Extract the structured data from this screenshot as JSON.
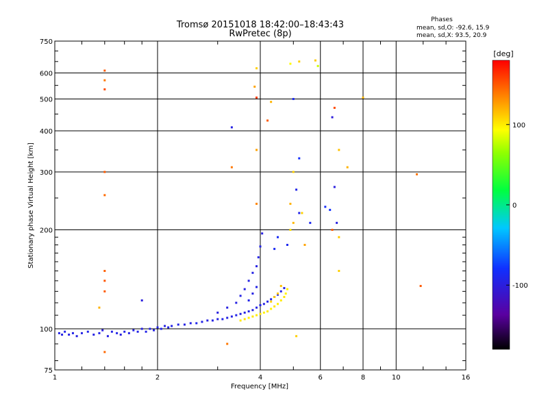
{
  "header": {
    "title_line1": "Tromsø 20151018 18:42:00–18:43:43",
    "title_line2": "RwPretec (8p)",
    "stats_title": "Phases",
    "stats_o": "mean, sd,O: -92.6, 15.9",
    "stats_x": "mean, sd,X:  93.5, 20.9"
  },
  "colorbar": {
    "unit": "[deg]",
    "ticks": [
      "100",
      "0",
      "-100"
    ],
    "tick_values": [
      100,
      0,
      -100
    ],
    "range": [
      -180,
      180
    ],
    "colormap": "rainbow-black-to-red"
  },
  "chart_data": {
    "type": "scatter",
    "xlabel": "Frequency [MHz]",
    "ylabel": "Stationary phase Virtual Height [km]",
    "x_scale": "log2",
    "y_scale": "log",
    "xlim": [
      1,
      16
    ],
    "ylim": [
      75,
      750
    ],
    "x_ticks": [
      {
        "v": 1,
        "label": "1"
      },
      {
        "v": 2,
        "label": "2"
      },
      {
        "v": 4,
        "label": "4"
      },
      {
        "v": 6,
        "label": "6"
      },
      {
        "v": 8,
        "label": "8"
      },
      {
        "v": 10,
        "label": "10"
      },
      {
        "v": 16,
        "label": "16"
      }
    ],
    "y_ticks": [
      {
        "v": 75,
        "label": "75"
      },
      {
        "v": 100,
        "label": "100"
      },
      {
        "v": 200,
        "label": "200"
      },
      {
        "v": 300,
        "label": "300"
      },
      {
        "v": 400,
        "label": "400"
      },
      {
        "v": 500,
        "label": "500"
      },
      {
        "v": 600,
        "label": "600"
      },
      {
        "v": 750,
        "label": "750"
      }
    ],
    "x_grid": [
      2,
      4,
      6,
      8,
      10
    ],
    "y_grid": [
      100,
      200,
      300,
      400,
      500,
      600
    ],
    "grid": true,
    "series": [
      {
        "values": [
          [
            1.03,
            97,
            -95
          ],
          [
            1.05,
            96,
            -97
          ],
          [
            1.07,
            98,
            -94
          ],
          [
            1.1,
            96,
            -96
          ],
          [
            1.13,
            97,
            -95
          ],
          [
            1.16,
            95,
            -98
          ],
          [
            1.2,
            97,
            -96
          ],
          [
            1.25,
            98,
            -93
          ],
          [
            1.3,
            96,
            -97
          ],
          [
            1.35,
            97,
            -95
          ],
          [
            1.38,
            99,
            -100
          ],
          [
            1.43,
            95,
            -98
          ],
          [
            1.47,
            98,
            -96
          ],
          [
            1.52,
            97,
            -94
          ],
          [
            1.56,
            96,
            -99
          ],
          [
            1.6,
            98,
            -95
          ],
          [
            1.65,
            97,
            -97
          ],
          [
            1.7,
            99,
            -96
          ],
          [
            1.75,
            98,
            -95
          ],
          [
            1.8,
            100,
            -98
          ],
          [
            1.85,
            98,
            -94
          ],
          [
            1.9,
            100,
            -97
          ],
          [
            1.95,
            99,
            -96
          ],
          [
            2.0,
            101,
            -95
          ],
          [
            2.05,
            100,
            -92
          ],
          [
            2.1,
            102,
            -98
          ],
          [
            2.15,
            101,
            -96
          ],
          [
            2.2,
            102,
            -95
          ],
          [
            2.3,
            103,
            -94
          ],
          [
            2.4,
            103,
            -97
          ],
          [
            2.5,
            104,
            -96
          ],
          [
            2.6,
            104,
            -92
          ],
          [
            2.7,
            105,
            -95
          ],
          [
            2.8,
            106,
            -98
          ],
          [
            2.9,
            106,
            -96
          ],
          [
            3.0,
            107,
            -97
          ],
          [
            3.1,
            107,
            -95
          ],
          [
            3.2,
            108,
            -96
          ],
          [
            3.3,
            109,
            -97
          ],
          [
            3.4,
            110,
            -94
          ],
          [
            3.5,
            111,
            -98
          ],
          [
            3.6,
            112,
            -96
          ],
          [
            3.7,
            113,
            -95
          ],
          [
            3.8,
            114,
            -97
          ],
          [
            3.9,
            116,
            -96
          ],
          [
            4.0,
            118,
            -95
          ],
          [
            4.1,
            119,
            -97
          ],
          [
            4.2,
            121,
            -96
          ],
          [
            4.3,
            123,
            -95
          ],
          [
            4.4,
            125,
            -98
          ],
          [
            4.5,
            127,
            -96
          ],
          [
            4.6,
            130,
            -95
          ],
          [
            4.7,
            133,
            -97
          ],
          [
            3.0,
            112,
            -99
          ],
          [
            3.2,
            116,
            -98
          ],
          [
            3.4,
            120,
            -97
          ],
          [
            3.5,
            126,
            -96
          ],
          [
            3.6,
            132,
            -98
          ],
          [
            3.7,
            140,
            -97
          ],
          [
            3.8,
            148,
            -96
          ],
          [
            3.9,
            155,
            -97
          ],
          [
            3.95,
            165,
            -96
          ],
          [
            4.0,
            178,
            -95
          ],
          [
            4.05,
            195,
            -98
          ],
          [
            3.9,
            134,
            -95
          ],
          [
            3.8,
            128,
            -97
          ],
          [
            3.7,
            122,
            -94
          ],
          [
            3.3,
            410,
            -97
          ],
          [
            1.8,
            122,
            -100
          ],
          [
            4.4,
            175,
            -88
          ],
          [
            4.5,
            190,
            -86
          ],
          [
            4.8,
            180,
            -90
          ],
          [
            5.0,
            500,
            -88
          ],
          [
            5.2,
            330,
            -82
          ],
          [
            5.6,
            210,
            -90
          ],
          [
            6.2,
            235,
            -85
          ],
          [
            6.4,
            230,
            -80
          ],
          [
            6.5,
            440,
            -102
          ],
          [
            6.6,
            270,
            -100
          ],
          [
            6.7,
            210,
            -98
          ],
          [
            5.1,
            265,
            -93
          ],
          [
            5.2,
            225,
            -95
          ]
        ]
      },
      {
        "values": [
          [
            3.5,
            106,
            101
          ],
          [
            3.6,
            107,
            103
          ],
          [
            3.7,
            108,
            99
          ],
          [
            3.8,
            109,
            102
          ],
          [
            3.9,
            110,
            100
          ],
          [
            4.0,
            111,
            104
          ],
          [
            4.1,
            112,
            98
          ],
          [
            4.2,
            113,
            102
          ],
          [
            4.3,
            115,
            97
          ],
          [
            4.4,
            117,
            103
          ],
          [
            4.5,
            119,
            99
          ],
          [
            4.6,
            122,
            101
          ],
          [
            4.7,
            125,
            102
          ],
          [
            4.75,
            128,
            98
          ],
          [
            4.8,
            132,
            100
          ],
          [
            4.4,
            125,
            112
          ],
          [
            4.5,
            128,
            115
          ],
          [
            4.3,
            121,
            110
          ],
          [
            1.4,
            610,
            150
          ],
          [
            1.4,
            570,
            140
          ],
          [
            1.4,
            535,
            155
          ],
          [
            1.4,
            300,
            150
          ],
          [
            1.4,
            255,
            145
          ],
          [
            1.4,
            150,
            148
          ],
          [
            1.4,
            140,
            152
          ],
          [
            1.4,
            130,
            150
          ],
          [
            1.4,
            85,
            145
          ],
          [
            1.35,
            116,
            120
          ],
          [
            3.3,
            310,
            140
          ],
          [
            3.2,
            90,
            140
          ],
          [
            3.9,
            620,
            110
          ],
          [
            3.85,
            545,
            125
          ],
          [
            3.9,
            505,
            160
          ],
          [
            3.9,
            350,
            125
          ],
          [
            3.9,
            240,
            135
          ],
          [
            4.2,
            430,
            150
          ],
          [
            4.3,
            490,
            120
          ],
          [
            4.9,
            640,
            95
          ],
          [
            5.0,
            300,
            110
          ],
          [
            5.2,
            650,
            110
          ],
          [
            5.8,
            655,
            112
          ],
          [
            5.9,
            630,
            80
          ],
          [
            6.6,
            470,
            155
          ],
          [
            6.8,
            350,
            115
          ],
          [
            7.2,
            310,
            120
          ],
          [
            8.0,
            505,
            120
          ],
          [
            11.5,
            295,
            140
          ],
          [
            11.8,
            135,
            150
          ],
          [
            6.8,
            150,
            110
          ],
          [
            6.8,
            190,
            112
          ],
          [
            6.5,
            200,
            150
          ],
          [
            5.1,
            95,
            110
          ],
          [
            5.3,
            225,
            110
          ],
          [
            4.9,
            240,
            120
          ],
          [
            5.4,
            180,
            125
          ],
          [
            4.6,
            135,
            115
          ],
          [
            4.9,
            200,
            105
          ],
          [
            5.0,
            210,
            118
          ]
        ]
      }
    ]
  }
}
